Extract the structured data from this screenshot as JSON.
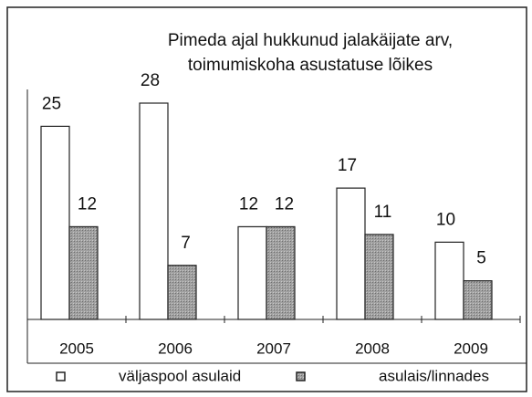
{
  "chart_data": {
    "type": "bar",
    "title": "Pimeda ajal hukkunud jalakäijate arv,",
    "subtitle": "toimumiskoha asustatuse lõikes",
    "categories": [
      "2005",
      "2006",
      "2007",
      "2008",
      "2009"
    ],
    "series": [
      {
        "name": "väljaspool asulaid",
        "color": "#ffffff",
        "values": [
          25,
          28,
          12,
          17,
          10
        ]
      },
      {
        "name": "asulais/linnades",
        "color": "#9a9a9a",
        "values": [
          12,
          7,
          12,
          11,
          5
        ]
      }
    ]
  }
}
